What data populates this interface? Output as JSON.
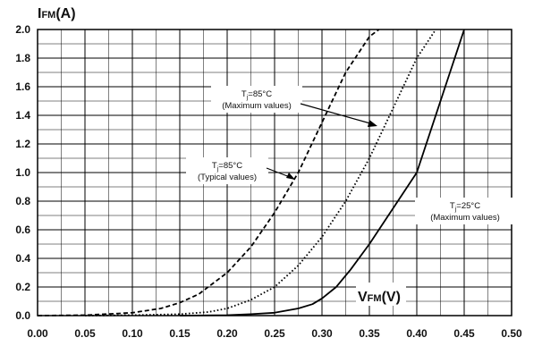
{
  "chart_data": {
    "type": "line",
    "xlabel": "VFM(V)",
    "ylabel": "IFM(A)",
    "xlim": [
      0.0,
      0.5
    ],
    "ylim": [
      0.0,
      2.0
    ],
    "x_ticks": [
      "0.00",
      "0.05",
      "0.10",
      "0.15",
      "0.20",
      "0.25",
      "0.30",
      "0.35",
      "0.40",
      "0.45",
      "0.50"
    ],
    "y_ticks": [
      "0.0",
      "0.2",
      "0.4",
      "0.6",
      "0.8",
      "1.0",
      "1.2",
      "1.4",
      "1.6",
      "1.8",
      "2.0"
    ],
    "grid": true,
    "series": [
      {
        "name": "Tj=85°C (Typical values)",
        "style": "dashed",
        "x": [
          0.0,
          0.05,
          0.1,
          0.13,
          0.15,
          0.17,
          0.2,
          0.225,
          0.25,
          0.275,
          0.3,
          0.325,
          0.35,
          0.36
        ],
        "y": [
          0.0,
          0.003,
          0.02,
          0.05,
          0.09,
          0.15,
          0.3,
          0.48,
          0.72,
          1.0,
          1.35,
          1.7,
          1.95,
          2.0
        ]
      },
      {
        "name": "Tj=85°C (Maximum values)",
        "style": "dotted",
        "x": [
          0.05,
          0.1,
          0.15,
          0.18,
          0.2,
          0.225,
          0.25,
          0.275,
          0.3,
          0.325,
          0.35,
          0.375,
          0.4,
          0.42
        ],
        "y": [
          0.0,
          0.003,
          0.01,
          0.025,
          0.05,
          0.11,
          0.2,
          0.35,
          0.55,
          0.8,
          1.1,
          1.45,
          1.8,
          2.0
        ]
      },
      {
        "name": "Tj=25°C (Maximum values)",
        "style": "solid",
        "x": [
          0.15,
          0.2,
          0.225,
          0.25,
          0.275,
          0.29,
          0.3,
          0.315,
          0.33,
          0.35,
          0.375,
          0.4,
          0.425,
          0.45
        ],
        "y": [
          0.0,
          0.003,
          0.01,
          0.02,
          0.05,
          0.08,
          0.12,
          0.2,
          0.32,
          0.5,
          0.75,
          1.0,
          1.5,
          2.0
        ]
      }
    ],
    "annotations": [
      {
        "text": "Tj=85°C",
        "sub": "(Typical values)",
        "points_to": "dashed"
      },
      {
        "text": "Tj=85°C",
        "sub": "(Maximum values)",
        "points_to": "dotted"
      },
      {
        "text": "Tj=25°C",
        "sub": "(Maximum values)",
        "points_to": "solid"
      }
    ]
  }
}
